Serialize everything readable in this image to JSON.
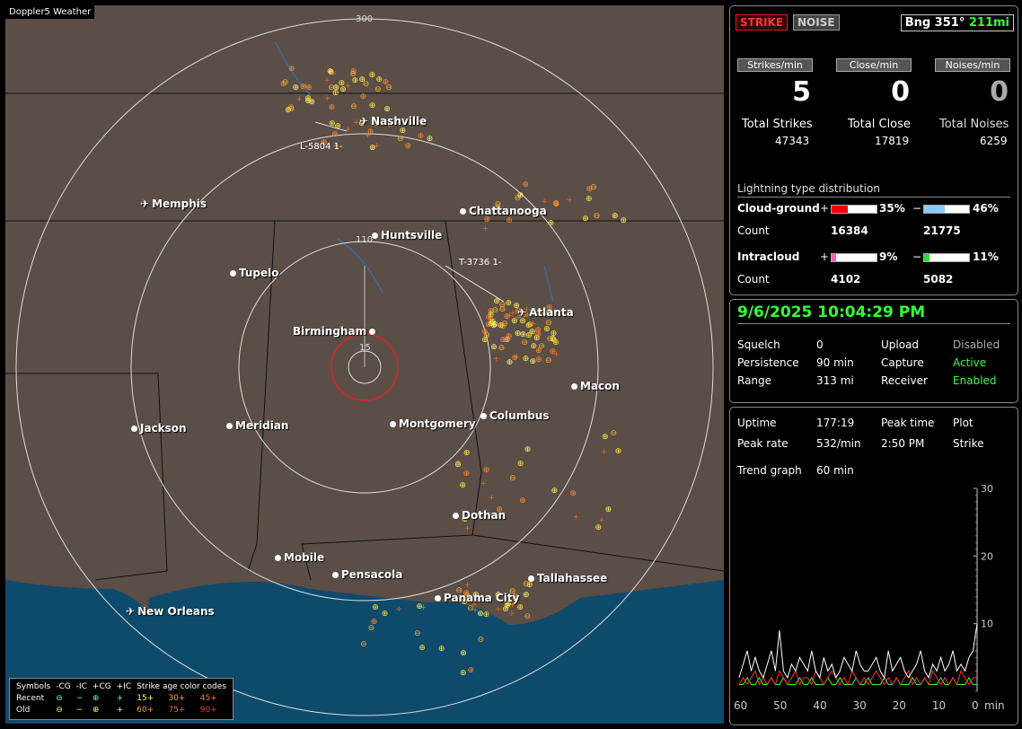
{
  "window_title": "Doppler5 Weather",
  "map": {
    "range_rings": [
      "300",
      "110",
      "15"
    ],
    "cities": [
      {
        "name": "Nashville",
        "kind": "airport"
      },
      {
        "name": "Memphis",
        "kind": "airport"
      },
      {
        "name": "Chattanooga",
        "kind": "city"
      },
      {
        "name": "Huntsville",
        "kind": "city"
      },
      {
        "name": "Tupelo",
        "kind": "city"
      },
      {
        "name": "Atlanta",
        "kind": "airport"
      },
      {
        "name": "Birmingham",
        "kind": "city"
      },
      {
        "name": "Macon",
        "kind": "city"
      },
      {
        "name": "Jackson",
        "kind": "airport"
      },
      {
        "name": "Meridian",
        "kind": "city"
      },
      {
        "name": "Montgomery",
        "kind": "city"
      },
      {
        "name": "Columbus",
        "kind": "city"
      },
      {
        "name": "Dothan",
        "kind": "city"
      },
      {
        "name": "Mobile",
        "kind": "city"
      },
      {
        "name": "Pensacola",
        "kind": "city"
      },
      {
        "name": "Tallahassee",
        "kind": "airport"
      },
      {
        "name": "Panama City",
        "kind": "city"
      },
      {
        "name": "New Orleans",
        "kind": "airport"
      }
    ],
    "track_labels": [
      "L-5804",
      "1-",
      "T-3736",
      "1-"
    ],
    "legend": {
      "row_header": [
        "Symbols",
        "-CG",
        "-IC",
        "+CG",
        "+IC",
        "Strike age color codes"
      ],
      "recent": {
        "label": "Recent",
        "ages": [
          "15+",
          "30+",
          "45+"
        ]
      },
      "old": {
        "label": "Old",
        "ages": [
          "60+",
          "75+",
          "90+"
        ]
      }
    }
  },
  "status": {
    "strike_label": "STRIKE",
    "noise_label": "NOISE",
    "bearing": "Bng 351°",
    "distance": "211mi"
  },
  "rates": {
    "strikes_label": "Strikes/min",
    "strikes": "5",
    "close_label": "Close/min",
    "close": "0",
    "noises_label": "Noises/min",
    "noises": "0"
  },
  "totals": {
    "strikes_label": "Total Strikes",
    "strikes": "47343",
    "close_label": "Total Close",
    "close": "17819",
    "noises_label": "Total Noises",
    "noises": "6259"
  },
  "distribution": {
    "title": "Lightning type distribution",
    "cg_label": "Cloud-ground",
    "cg_pos_pct": "35%",
    "cg_pos_fill": 0.35,
    "cg_neg_pct": "46%",
    "cg_neg_fill": 0.46,
    "cg_count_label": "Count",
    "cg_pos_count": "16384",
    "cg_neg_count": "21775",
    "ic_label": "Intracloud",
    "ic_pos_pct": "9%",
    "ic_pos_fill": 0.09,
    "ic_neg_pct": "11%",
    "ic_neg_fill": 0.11,
    "ic_count_label": "Count",
    "ic_pos_count": "4102",
    "ic_neg_count": "5082",
    "plus": "+",
    "minus": "−"
  },
  "settings": {
    "datetime": "9/6/2025 10:04:29 PM",
    "squelch_label": "Squelch",
    "squelch": "0",
    "persistence_label": "Persistence",
    "persistence": "90 min",
    "range_label": "Range",
    "range": "313 mi",
    "upload_label": "Upload",
    "upload": "Disabled",
    "capture_label": "Capture",
    "capture": "Active",
    "receiver_label": "Receiver",
    "receiver": "Enabled"
  },
  "stats": {
    "uptime_label": "Uptime",
    "uptime": "177:19",
    "peak_time_label": "Peak time",
    "peak_time": "2:50 PM",
    "plot_label": "Plot",
    "plot": "Strike",
    "peak_rate_label": "Peak rate",
    "peak_rate": "532/min",
    "trend_label": "Trend graph",
    "trend": "60 min"
  },
  "trend_chart": {
    "x_ticks": [
      "60",
      "50",
      "40",
      "30",
      "20",
      "10",
      "0"
    ],
    "x_unit": "min",
    "y_ticks": [
      "30",
      "20",
      "10"
    ],
    "ylim": [
      0,
      30
    ],
    "series_white": [
      2,
      4,
      6,
      3,
      5,
      3,
      2,
      4,
      6,
      3,
      9,
      3,
      2,
      4,
      3,
      5,
      4,
      3,
      6,
      3,
      2,
      5,
      3,
      4,
      2,
      3,
      5,
      4,
      3,
      6,
      4,
      3,
      3,
      4,
      5,
      3,
      2,
      6,
      3,
      4,
      5,
      3,
      2,
      3,
      4,
      6,
      3,
      2,
      4,
      3,
      5,
      3,
      4,
      6,
      3,
      4,
      3,
      5,
      6,
      10
    ],
    "series_red": [
      1,
      2,
      1,
      2,
      3,
      1,
      2,
      1,
      2,
      1,
      3,
      2,
      1,
      2,
      3,
      1,
      2,
      2,
      1,
      3,
      2,
      1,
      2,
      3,
      2,
      1,
      2,
      1,
      3,
      2,
      1,
      2,
      1,
      2,
      3,
      2,
      1,
      2,
      1,
      2,
      1,
      2,
      3,
      1,
      2,
      1,
      2,
      1,
      3,
      2,
      1,
      2,
      1,
      2,
      1,
      3,
      2,
      1,
      2,
      2
    ],
    "series_green": [
      1,
      1,
      2,
      1,
      1,
      2,
      1,
      1,
      2,
      1,
      1,
      2,
      1,
      1,
      1,
      2,
      1,
      1,
      2,
      1,
      1,
      1,
      2,
      1,
      1,
      2,
      1,
      1,
      1,
      2,
      1,
      1,
      2,
      1,
      1,
      1,
      2,
      1,
      1,
      2,
      1,
      1,
      1,
      2,
      1,
      1,
      2,
      1,
      1,
      1,
      2,
      1,
      1,
      2,
      1,
      1,
      1,
      2,
      1,
      1
    ],
    "colors": {
      "white": "#ffffff",
      "red": "#ff3030",
      "green": "#30ff30",
      "blue": "#6060ff",
      "yellow": "#ffff40"
    }
  }
}
